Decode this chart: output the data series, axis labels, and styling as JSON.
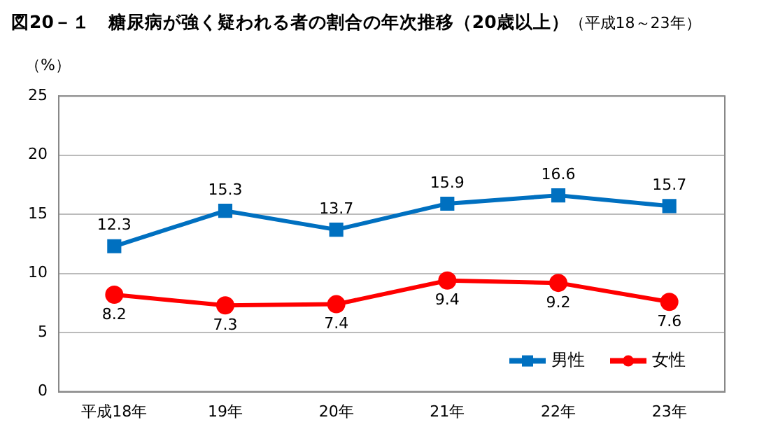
{
  "chart_data": {
    "type": "line",
    "title": "図20－１　糖尿病が強く疑われる者の割合の年次推移（20歳以上）",
    "subtitle": "（平成18～23年）",
    "ylabel": "（%）",
    "categories": [
      "平成18年",
      "19年",
      "20年",
      "21年",
      "22年",
      "23年"
    ],
    "series": [
      {
        "name": "男性",
        "color": "#0070c0",
        "values": [
          12.3,
          15.3,
          13.7,
          15.9,
          16.6,
          15.7
        ],
        "marker": "square"
      },
      {
        "name": "女性",
        "color": "#ff0000",
        "values": [
          8.2,
          7.3,
          7.4,
          9.4,
          9.2,
          7.6
        ],
        "marker": "circle"
      }
    ],
    "ylim": [
      0,
      25
    ],
    "yticks": [
      0,
      5,
      10,
      15,
      20,
      25
    ],
    "grid": "y",
    "legend": "bottom right",
    "data_labels": true
  }
}
